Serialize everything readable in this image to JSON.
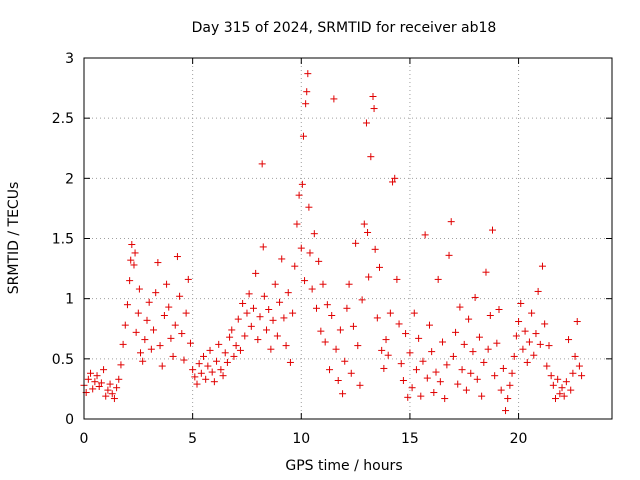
{
  "chart_data": {
    "type": "scatter",
    "title": "Day 315 of 2024, SRMTID for receiver ab18",
    "xlabel": "GPS time / hours",
    "ylabel": "SRMTID / TECUs",
    "xlim": [
      0,
      24.3
    ],
    "ylim": [
      0,
      3
    ],
    "xticks": [
      0,
      5,
      10,
      15,
      20
    ],
    "xtick_labels": [
      "0",
      "5",
      "10",
      "15",
      "20"
    ],
    "yticks": [
      0,
      0.5,
      1,
      1.5,
      2,
      2.5,
      3
    ],
    "ytick_labels": [
      "0",
      "0.5",
      "1",
      "1.5",
      "2",
      "2.5",
      "3"
    ],
    "grid": true,
    "marker": "+",
    "series": [
      {
        "name": "ab18",
        "color": "#e00000",
        "points": [
          [
            0.0,
            0.28
          ],
          [
            0.1,
            0.22
          ],
          [
            0.2,
            0.33
          ],
          [
            0.3,
            0.38
          ],
          [
            0.4,
            0.25
          ],
          [
            0.5,
            0.31
          ],
          [
            0.6,
            0.36
          ],
          [
            0.7,
            0.27
          ],
          [
            0.8,
            0.3
          ],
          [
            0.9,
            0.41
          ],
          [
            1.0,
            0.19
          ],
          [
            1.1,
            0.24
          ],
          [
            1.2,
            0.29
          ],
          [
            1.3,
            0.21
          ],
          [
            1.4,
            0.17
          ],
          [
            1.5,
            0.26
          ],
          [
            1.6,
            0.33
          ],
          [
            1.7,
            0.45
          ],
          [
            1.8,
            0.62
          ],
          [
            1.9,
            0.78
          ],
          [
            2.0,
            0.95
          ],
          [
            2.1,
            1.15
          ],
          [
            2.15,
            1.32
          ],
          [
            2.2,
            1.45
          ],
          [
            2.3,
            1.28
          ],
          [
            2.35,
            1.38
          ],
          [
            2.4,
            0.72
          ],
          [
            2.5,
            0.88
          ],
          [
            2.55,
            1.08
          ],
          [
            2.6,
            0.55
          ],
          [
            2.7,
            0.48
          ],
          [
            2.8,
            0.66
          ],
          [
            2.9,
            0.82
          ],
          [
            3.0,
            0.97
          ],
          [
            3.1,
            0.58
          ],
          [
            3.2,
            0.74
          ],
          [
            3.3,
            1.05
          ],
          [
            3.4,
            1.3
          ],
          [
            3.5,
            0.61
          ],
          [
            3.6,
            0.44
          ],
          [
            3.7,
            0.86
          ],
          [
            3.8,
            1.12
          ],
          [
            3.9,
            0.93
          ],
          [
            4.0,
            0.67
          ],
          [
            4.1,
            0.52
          ],
          [
            4.2,
            0.78
          ],
          [
            4.3,
            1.35
          ],
          [
            4.4,
            1.02
          ],
          [
            4.5,
            0.71
          ],
          [
            4.6,
            0.49
          ],
          [
            4.7,
            0.88
          ],
          [
            4.8,
            1.16
          ],
          [
            4.9,
            0.63
          ],
          [
            5.0,
            0.41
          ],
          [
            5.1,
            0.35
          ],
          [
            5.2,
            0.29
          ],
          [
            5.3,
            0.46
          ],
          [
            5.4,
            0.38
          ],
          [
            5.5,
            0.52
          ],
          [
            5.6,
            0.33
          ],
          [
            5.7,
            0.44
          ],
          [
            5.8,
            0.57
          ],
          [
            5.9,
            0.39
          ],
          [
            6.0,
            0.31
          ],
          [
            6.1,
            0.48
          ],
          [
            6.2,
            0.62
          ],
          [
            6.3,
            0.41
          ],
          [
            6.4,
            0.36
          ],
          [
            6.5,
            0.55
          ],
          [
            6.6,
            0.47
          ],
          [
            6.7,
            0.68
          ],
          [
            6.8,
            0.74
          ],
          [
            6.9,
            0.52
          ],
          [
            7.0,
            0.61
          ],
          [
            7.1,
            0.83
          ],
          [
            7.2,
            0.57
          ],
          [
            7.3,
            0.96
          ],
          [
            7.4,
            0.69
          ],
          [
            7.5,
            0.88
          ],
          [
            7.6,
            1.04
          ],
          [
            7.7,
            0.77
          ],
          [
            7.8,
            0.92
          ],
          [
            7.9,
            1.21
          ],
          [
            8.0,
            0.66
          ],
          [
            8.1,
            0.85
          ],
          [
            8.2,
            2.12
          ],
          [
            8.25,
            1.43
          ],
          [
            8.3,
            1.02
          ],
          [
            8.4,
            0.74
          ],
          [
            8.5,
            0.91
          ],
          [
            8.6,
            0.58
          ],
          [
            8.7,
            0.82
          ],
          [
            8.8,
            1.12
          ],
          [
            8.9,
            0.69
          ],
          [
            9.0,
            0.97
          ],
          [
            9.1,
            1.33
          ],
          [
            9.2,
            0.84
          ],
          [
            9.3,
            0.61
          ],
          [
            9.4,
            1.05
          ],
          [
            9.5,
            0.47
          ],
          [
            9.6,
            0.88
          ],
          [
            9.7,
            1.27
          ],
          [
            9.8,
            1.62
          ],
          [
            9.9,
            1.86
          ],
          [
            10.0,
            1.42
          ],
          [
            10.05,
            1.95
          ],
          [
            10.1,
            2.35
          ],
          [
            10.15,
            1.15
          ],
          [
            10.2,
            2.62
          ],
          [
            10.25,
            2.72
          ],
          [
            10.3,
            2.87
          ],
          [
            10.35,
            1.76
          ],
          [
            10.4,
            1.38
          ],
          [
            10.5,
            1.08
          ],
          [
            10.6,
            1.54
          ],
          [
            10.7,
            0.92
          ],
          [
            10.8,
            1.31
          ],
          [
            10.9,
            0.73
          ],
          [
            11.0,
            1.12
          ],
          [
            11.1,
            0.64
          ],
          [
            11.2,
            0.95
          ],
          [
            11.3,
            0.41
          ],
          [
            11.4,
            0.86
          ],
          [
            11.5,
            2.66
          ],
          [
            11.6,
            0.58
          ],
          [
            11.7,
            0.32
          ],
          [
            11.8,
            0.74
          ],
          [
            11.9,
            0.21
          ],
          [
            12.0,
            0.48
          ],
          [
            12.1,
            0.92
          ],
          [
            12.2,
            1.12
          ],
          [
            12.3,
            0.38
          ],
          [
            12.4,
            0.77
          ],
          [
            12.5,
            1.46
          ],
          [
            12.6,
            0.61
          ],
          [
            12.7,
            0.28
          ],
          [
            12.8,
            0.99
          ],
          [
            12.9,
            1.62
          ],
          [
            13.0,
            2.46
          ],
          [
            13.05,
            1.55
          ],
          [
            13.1,
            1.18
          ],
          [
            13.2,
            2.18
          ],
          [
            13.3,
            2.68
          ],
          [
            13.35,
            2.58
          ],
          [
            13.4,
            1.41
          ],
          [
            13.5,
            0.84
          ],
          [
            13.6,
            1.26
          ],
          [
            13.7,
            0.57
          ],
          [
            13.8,
            0.42
          ],
          [
            13.9,
            0.66
          ],
          [
            14.0,
            0.53
          ],
          [
            14.1,
            0.88
          ],
          [
            14.2,
            1.97
          ],
          [
            14.3,
            2.0
          ],
          [
            14.4,
            1.16
          ],
          [
            14.5,
            0.79
          ],
          [
            14.6,
            0.46
          ],
          [
            14.7,
            0.32
          ],
          [
            14.8,
            0.71
          ],
          [
            14.9,
            0.18
          ],
          [
            15.0,
            0.55
          ],
          [
            15.1,
            0.26
          ],
          [
            15.2,
            0.88
          ],
          [
            15.3,
            0.41
          ],
          [
            15.4,
            0.67
          ],
          [
            15.5,
            0.19
          ],
          [
            15.6,
            0.48
          ],
          [
            15.7,
            1.53
          ],
          [
            15.8,
            0.34
          ],
          [
            15.9,
            0.78
          ],
          [
            16.0,
            0.56
          ],
          [
            16.1,
            0.22
          ],
          [
            16.2,
            0.39
          ],
          [
            16.3,
            1.16
          ],
          [
            16.4,
            0.31
          ],
          [
            16.5,
            0.64
          ],
          [
            16.6,
            0.17
          ],
          [
            16.7,
            0.45
          ],
          [
            16.8,
            1.36
          ],
          [
            16.9,
            1.64
          ],
          [
            17.0,
            0.52
          ],
          [
            17.1,
            0.72
          ],
          [
            17.2,
            0.29
          ],
          [
            17.3,
            0.93
          ],
          [
            17.4,
            0.41
          ],
          [
            17.5,
            0.62
          ],
          [
            17.6,
            0.24
          ],
          [
            17.7,
            0.83
          ],
          [
            17.8,
            0.38
          ],
          [
            17.9,
            0.56
          ],
          [
            18.0,
            1.01
          ],
          [
            18.1,
            0.33
          ],
          [
            18.2,
            0.68
          ],
          [
            18.3,
            0.19
          ],
          [
            18.4,
            0.47
          ],
          [
            18.5,
            1.22
          ],
          [
            18.6,
            0.58
          ],
          [
            18.7,
            0.86
          ],
          [
            18.8,
            1.57
          ],
          [
            18.9,
            0.36
          ],
          [
            19.0,
            0.63
          ],
          [
            19.1,
            0.91
          ],
          [
            19.2,
            0.24
          ],
          [
            19.3,
            0.42
          ],
          [
            19.4,
            0.07
          ],
          [
            19.5,
            0.17
          ],
          [
            19.6,
            0.28
          ],
          [
            19.7,
            0.38
          ],
          [
            19.8,
            0.52
          ],
          [
            19.9,
            0.69
          ],
          [
            20.0,
            0.81
          ],
          [
            20.1,
            0.96
          ],
          [
            20.2,
            0.58
          ],
          [
            20.3,
            0.73
          ],
          [
            20.4,
            0.47
          ],
          [
            20.5,
            0.64
          ],
          [
            20.6,
            0.88
          ],
          [
            20.7,
            0.53
          ],
          [
            20.8,
            0.71
          ],
          [
            20.9,
            1.06
          ],
          [
            21.0,
            0.62
          ],
          [
            21.1,
            1.27
          ],
          [
            21.2,
            0.79
          ],
          [
            21.3,
            0.44
          ],
          [
            21.4,
            0.61
          ],
          [
            21.5,
            0.36
          ],
          [
            21.6,
            0.28
          ],
          [
            21.7,
            0.17
          ],
          [
            21.8,
            0.33
          ],
          [
            21.9,
            0.21
          ],
          [
            22.0,
            0.26
          ],
          [
            22.1,
            0.19
          ],
          [
            22.2,
            0.31
          ],
          [
            22.3,
            0.66
          ],
          [
            22.4,
            0.24
          ],
          [
            22.5,
            0.38
          ],
          [
            22.6,
            0.52
          ],
          [
            22.7,
            0.81
          ],
          [
            22.8,
            0.44
          ],
          [
            22.9,
            0.36
          ]
        ]
      }
    ]
  }
}
